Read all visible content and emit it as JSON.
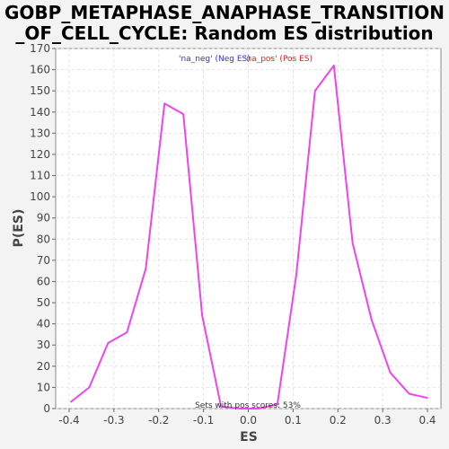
{
  "chart_data": {
    "type": "line",
    "title_line1": "GOBP_METAPHASE_ANAPHASE_TRANSITION",
    "title_line2": "_OF_CELL_CYCLE: Random ES distribution",
    "xlabel": "ES",
    "ylabel": "P(ES)",
    "xlim": [
      -0.43,
      0.43
    ],
    "ylim": [
      0,
      170
    ],
    "xticks": [
      -0.4,
      -0.3,
      -0.2,
      -0.1,
      0.0,
      0.1,
      0.2,
      0.3,
      0.4
    ],
    "xtick_labels": [
      "-0.4",
      "-0.3",
      "-0.2",
      "-0.1",
      "0.0",
      "0.1",
      "0.2",
      "0.3",
      "0.4"
    ],
    "yticks": [
      0,
      10,
      20,
      30,
      40,
      50,
      60,
      70,
      80,
      90,
      100,
      110,
      120,
      130,
      140,
      150,
      160,
      170
    ],
    "grid": true,
    "legend": [
      {
        "label": "'na_neg' (Neg ES)",
        "color": "#3333cc"
      },
      {
        "label": "'na_pos' (Pos ES)",
        "color": "#dd2222"
      }
    ],
    "series": [
      {
        "color": "#ee44ee",
        "x": [
          -0.397,
          -0.355,
          -0.313,
          -0.271,
          -0.229,
          -0.187,
          -0.145,
          -0.103,
          -0.061,
          -0.019,
          0.023,
          0.065,
          0.107,
          0.149,
          0.191,
          0.233,
          0.275,
          0.317,
          0.359,
          0.401
        ],
        "y": [
          3,
          10,
          31,
          36,
          66,
          144,
          139,
          44,
          1,
          0,
          0,
          2,
          63,
          150,
          162,
          78,
          42,
          17,
          7,
          5
        ]
      }
    ],
    "annotation": "Sets with pos scores: 53%"
  }
}
